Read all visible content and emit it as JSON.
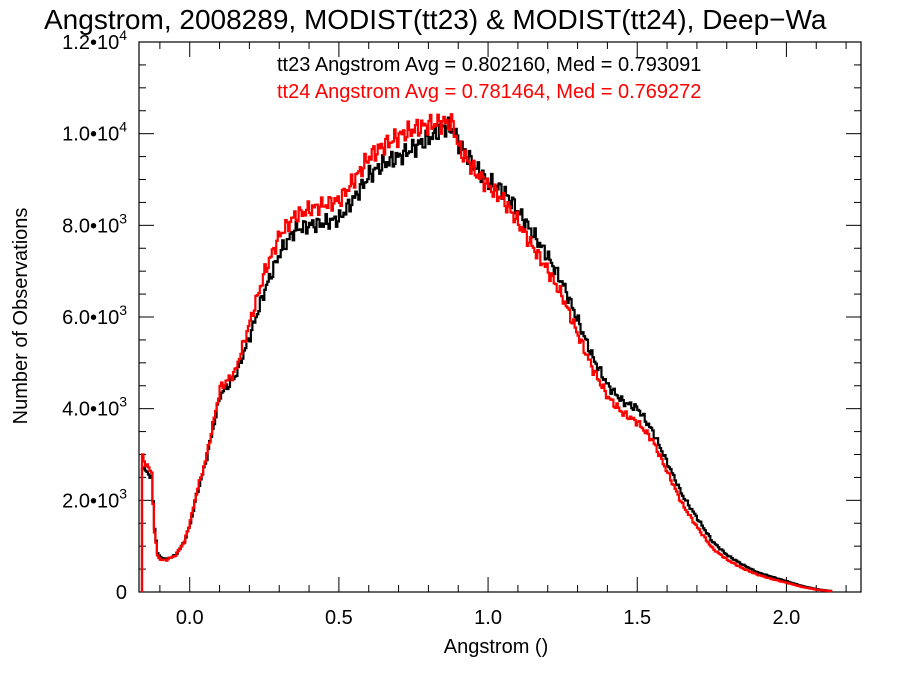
{
  "chart_data": {
    "type": "line",
    "title": "Angstrom, 2008289, MODIST(tt23) & MODIST(tt24), Deep−Wa",
    "xlabel": "Angstrom ()",
    "ylabel": "Number of Observations",
    "xlim": [
      -0.17,
      2.25
    ],
    "ylim": [
      0,
      12000
    ],
    "grid": false,
    "x_ticks": [
      {
        "value": 0.0,
        "label": "0.0"
      },
      {
        "value": 0.5,
        "label": "0.5"
      },
      {
        "value": 1.0,
        "label": "1.0"
      },
      {
        "value": 1.5,
        "label": "1.5"
      },
      {
        "value": 2.0,
        "label": "2.0"
      }
    ],
    "y_ticks": [
      {
        "value": 0,
        "mantissa": "0",
        "exponent": ""
      },
      {
        "value": 2000,
        "mantissa": "2.0•10",
        "exponent": "3"
      },
      {
        "value": 4000,
        "mantissa": "4.0•10",
        "exponent": "3"
      },
      {
        "value": 6000,
        "mantissa": "6.0•10",
        "exponent": "3"
      },
      {
        "value": 8000,
        "mantissa": "8.0•10",
        "exponent": "3"
      },
      {
        "value": 10000,
        "mantissa": "1.0•10",
        "exponent": "4"
      },
      {
        "value": 12000,
        "mantissa": "1.2•10",
        "exponent": "4"
      }
    ],
    "legend": [
      {
        "text": "tt23 Angstrom Avg = 0.802160, Med = 0.793091",
        "color": "#000000"
      },
      {
        "text": "tt24 Angstrom Avg = 0.781464, Med = 0.769272",
        "color": "#ff0000"
      }
    ],
    "legend_position": "top-right",
    "series": [
      {
        "color": "#000000",
        "points": [
          [
            -0.16,
            0
          ],
          [
            -0.16,
            2700
          ],
          [
            -0.15,
            2650
          ],
          [
            -0.13,
            2500
          ],
          [
            -0.12,
            1400
          ],
          [
            -0.11,
            850
          ],
          [
            -0.1,
            750
          ],
          [
            -0.08,
            720
          ],
          [
            -0.05,
            800
          ],
          [
            -0.02,
            1100
          ],
          [
            0.0,
            1500
          ],
          [
            0.02,
            2100
          ],
          [
            0.05,
            2800
          ],
          [
            0.08,
            3700
          ],
          [
            0.1,
            4300
          ],
          [
            0.15,
            4700
          ],
          [
            0.2,
            5600
          ],
          [
            0.25,
            6600
          ],
          [
            0.3,
            7400
          ],
          [
            0.35,
            7900
          ],
          [
            0.4,
            8000
          ],
          [
            0.45,
            8050
          ],
          [
            0.5,
            8150
          ],
          [
            0.55,
            8600
          ],
          [
            0.6,
            9100
          ],
          [
            0.65,
            9350
          ],
          [
            0.7,
            9500
          ],
          [
            0.75,
            9700
          ],
          [
            0.8,
            9900
          ],
          [
            0.85,
            10150
          ],
          [
            0.88,
            10100
          ],
          [
            0.9,
            9800
          ],
          [
            0.95,
            9300
          ],
          [
            1.0,
            8950
          ],
          [
            1.05,
            8750
          ],
          [
            1.1,
            8300
          ],
          [
            1.15,
            7800
          ],
          [
            1.2,
            7300
          ],
          [
            1.25,
            6700
          ],
          [
            1.3,
            5900
          ],
          [
            1.35,
            5100
          ],
          [
            1.4,
            4500
          ],
          [
            1.45,
            4150
          ],
          [
            1.5,
            4000
          ],
          [
            1.55,
            3500
          ],
          [
            1.6,
            2800
          ],
          [
            1.65,
            2100
          ],
          [
            1.7,
            1600
          ],
          [
            1.75,
            1100
          ],
          [
            1.8,
            800
          ],
          [
            1.85,
            600
          ],
          [
            1.9,
            430
          ],
          [
            1.95,
            330
          ],
          [
            2.0,
            230
          ],
          [
            2.05,
            130
          ],
          [
            2.1,
            60
          ],
          [
            2.15,
            20
          ]
        ]
      },
      {
        "color": "#ff0000",
        "points": [
          [
            -0.16,
            0
          ],
          [
            -0.16,
            2950
          ],
          [
            -0.15,
            2800
          ],
          [
            -0.13,
            2600
          ],
          [
            -0.12,
            1300
          ],
          [
            -0.11,
            800
          ],
          [
            -0.1,
            700
          ],
          [
            -0.08,
            700
          ],
          [
            -0.05,
            800
          ],
          [
            -0.02,
            1100
          ],
          [
            0.0,
            1550
          ],
          [
            0.02,
            2150
          ],
          [
            0.05,
            2850
          ],
          [
            0.08,
            3800
          ],
          [
            0.1,
            4450
          ],
          [
            0.15,
            4800
          ],
          [
            0.2,
            5900
          ],
          [
            0.25,
            7000
          ],
          [
            0.3,
            7800
          ],
          [
            0.35,
            8200
          ],
          [
            0.4,
            8350
          ],
          [
            0.45,
            8450
          ],
          [
            0.5,
            8550
          ],
          [
            0.55,
            9000
          ],
          [
            0.6,
            9500
          ],
          [
            0.65,
            9750
          ],
          [
            0.7,
            9950
          ],
          [
            0.75,
            10100
          ],
          [
            0.8,
            10200
          ],
          [
            0.85,
            10250
          ],
          [
            0.88,
            10200
          ],
          [
            0.9,
            9700
          ],
          [
            0.95,
            9200
          ],
          [
            1.0,
            8850
          ],
          [
            1.05,
            8550
          ],
          [
            1.1,
            8050
          ],
          [
            1.15,
            7500
          ],
          [
            1.2,
            7000
          ],
          [
            1.25,
            6400
          ],
          [
            1.3,
            5600
          ],
          [
            1.35,
            4850
          ],
          [
            1.4,
            4250
          ],
          [
            1.45,
            3900
          ],
          [
            1.5,
            3700
          ],
          [
            1.55,
            3300
          ],
          [
            1.6,
            2600
          ],
          [
            1.65,
            1900
          ],
          [
            1.7,
            1400
          ],
          [
            1.75,
            950
          ],
          [
            1.8,
            700
          ],
          [
            1.85,
            520
          ],
          [
            1.9,
            380
          ],
          [
            1.95,
            280
          ],
          [
            2.0,
            200
          ],
          [
            2.05,
            110
          ],
          [
            2.1,
            50
          ],
          [
            2.15,
            15
          ]
        ]
      }
    ]
  }
}
